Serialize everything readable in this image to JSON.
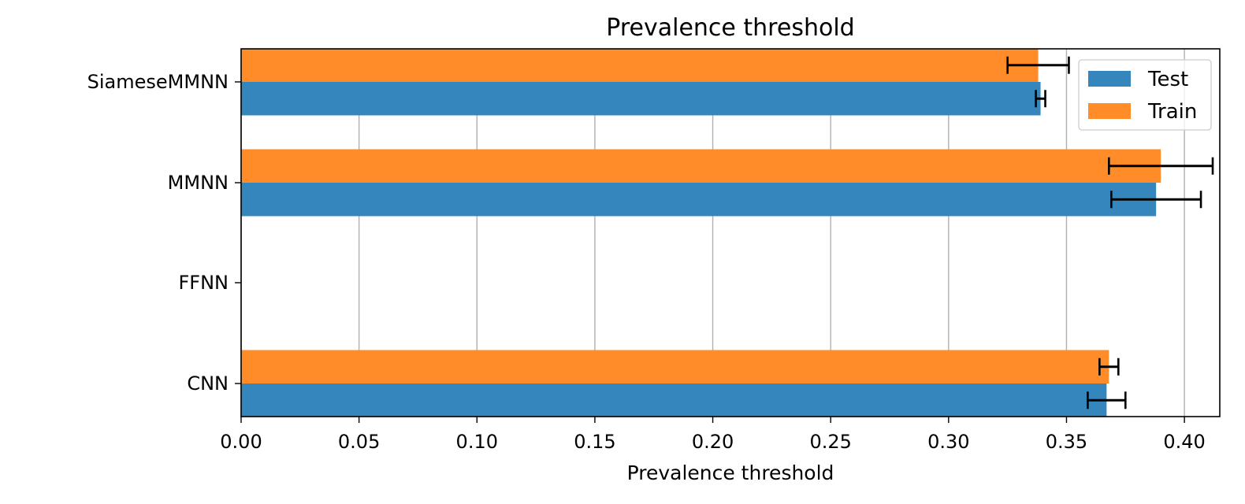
{
  "colors": {
    "test": "#3686BE",
    "train": "#FF8C28",
    "grid": "#B0B0B0",
    "error_bar": "#000000"
  },
  "chart_data": {
    "type": "bar",
    "orientation": "horizontal",
    "title": "Prevalence threshold",
    "xlabel": "Prevalence threshold",
    "ylabel": "",
    "categories": [
      "SiameseMMNN",
      "MMNN",
      "FFNN",
      "CNN"
    ],
    "series": [
      {
        "name": "Test",
        "values": [
          0.339,
          0.388,
          null,
          0.367
        ],
        "error": [
          0.002,
          0.019,
          null,
          0.008
        ]
      },
      {
        "name": "Train",
        "values": [
          0.338,
          0.39,
          null,
          0.368
        ],
        "error": [
          0.013,
          0.022,
          null,
          0.004
        ]
      }
    ],
    "xlim": [
      0.0,
      0.415
    ],
    "xticks": [
      "0.00",
      "0.05",
      "0.10",
      "0.15",
      "0.20",
      "0.25",
      "0.30",
      "0.35",
      "0.40"
    ],
    "grid": "x",
    "legend_position": "top-right"
  }
}
